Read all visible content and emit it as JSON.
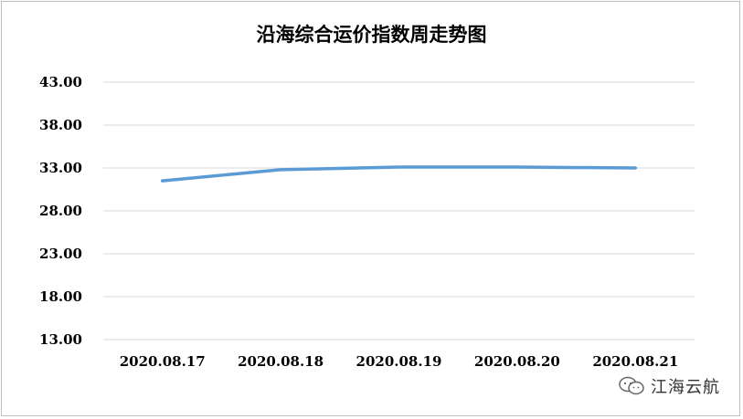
{
  "chart_data": {
    "type": "line",
    "title": "沿海综合运价指数周走势图",
    "categories": [
      "2020.08.17",
      "2020.08.18",
      "2020.08.19",
      "2020.08.20",
      "2020.08.21"
    ],
    "series": [
      {
        "values": [
          31.5,
          32.8,
          33.1,
          33.1,
          33.0
        ],
        "color": "#5b9bd5"
      }
    ],
    "ylim": [
      13,
      43
    ],
    "yticks": [
      "43.00",
      "38.00",
      "33.00",
      "28.00",
      "23.00",
      "18.00",
      "13.00"
    ],
    "grid": true,
    "xlabel": "",
    "ylabel": ""
  },
  "watermark": {
    "text": "江海云航",
    "icon": "wechat-icon"
  }
}
